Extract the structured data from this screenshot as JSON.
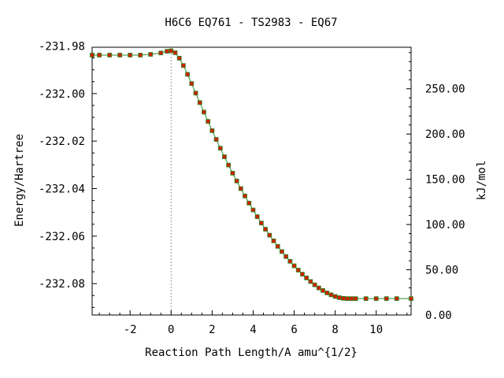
{
  "chart_data": {
    "type": "scatter",
    "title": "H6C6   EQ761 - TS2983 - EQ67",
    "xlabel": "Reaction Path Length/A amu^{1/2}",
    "ylabel": "Energy/Hartree",
    "y2label": "kJ/mol",
    "xlim": [
      -3.85,
      11.7
    ],
    "ylim": [
      -232.0932,
      -231.9805
    ],
    "y2lim": [
      0,
      295.9
    ],
    "x_ticks": [
      -2,
      0,
      2,
      4,
      6,
      8,
      10
    ],
    "x_tick_labels": [
      "-2",
      "0",
      "2",
      "4",
      "6",
      "8",
      "10"
    ],
    "y_ticks": [
      -231.98,
      -232.0,
      -232.02,
      -232.04,
      -232.06,
      -232.08
    ],
    "y_tick_labels": [
      "-231.98",
      "-232.00",
      "-232.02",
      "-232.04",
      "-232.06",
      "-232.08"
    ],
    "y2_ticks": [
      0,
      50,
      100,
      150,
      200,
      250
    ],
    "y2_tick_labels": [
      "0.00",
      "50.00",
      "100.00",
      "150.00",
      "200.00",
      "250.00"
    ],
    "ts_marker_x": 0,
    "curve_color": "#2e8b2e",
    "point_color": "#cc2200",
    "ts_line_color": "#999999",
    "series": [
      {
        "x": [
          -3.85,
          -3.5,
          -3.0,
          -2.5,
          -2.0,
          -1.5,
          -1.0,
          -0.5,
          -0.2,
          0.0,
          0.2,
          0.4,
          0.6,
          0.8,
          1.0,
          1.2,
          1.4,
          1.6,
          1.8,
          2.0,
          2.2,
          2.4,
          2.6,
          2.8,
          3.0,
          3.2,
          3.4,
          3.6,
          3.8,
          4.0,
          4.2,
          4.4,
          4.6,
          4.8,
          5.0,
          5.2,
          5.4,
          5.6,
          5.8,
          6.0,
          6.2,
          6.4,
          6.6,
          6.8,
          7.0,
          7.2,
          7.4,
          7.6,
          7.8,
          8.0,
          8.2,
          8.4,
          8.6,
          8.8,
          9.0,
          9.5,
          10.0,
          10.5,
          11.0,
          11.7
        ],
        "y": [
          -231.9838,
          -231.9838,
          -231.9838,
          -231.9838,
          -231.9838,
          -231.9838,
          -231.9835,
          -231.9829,
          -231.9822,
          -231.982,
          -231.9828,
          -231.9851,
          -231.9882,
          -231.9919,
          -231.9958,
          -231.9998,
          -232.0038,
          -232.0078,
          -232.0117,
          -232.0156,
          -232.0193,
          -232.023,
          -232.0266,
          -232.0301,
          -232.0335,
          -232.0368,
          -232.04,
          -232.0431,
          -232.0461,
          -232.049,
          -232.0518,
          -232.0545,
          -232.0571,
          -232.0596,
          -232.062,
          -232.0643,
          -232.0665,
          -232.0686,
          -232.0706,
          -232.0725,
          -232.0743,
          -232.076,
          -232.0776,
          -232.0791,
          -232.0805,
          -232.0818,
          -232.0829,
          -232.0839,
          -232.0847,
          -232.0854,
          -232.0859,
          -232.0862,
          -232.0863,
          -232.0863,
          -232.0863,
          -232.0863,
          -232.0863,
          -232.0863,
          -232.0863,
          -232.0863
        ]
      }
    ]
  }
}
